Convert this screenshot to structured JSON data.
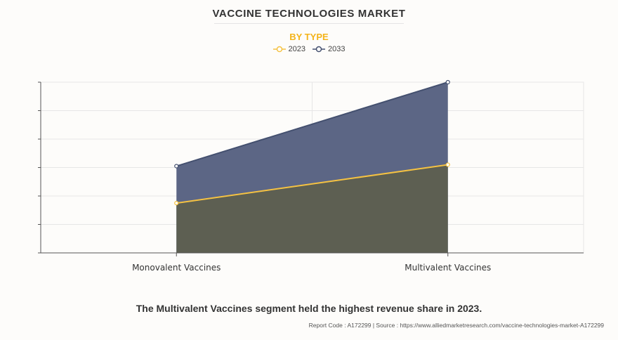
{
  "colors": {
    "series_2023": "#f5c242",
    "series_2033": "#44506f",
    "subtitle": "#f4b41a",
    "fill_2023": "#5d5f52",
    "fill_2033": "#5c6685"
  },
  "chart_data": {
    "type": "area",
    "title": "VACCINE TECHNOLOGIES MARKET",
    "subtitle": "BY TYPE",
    "categories": [
      "Monovalent Vaccines",
      "Multivalent Vaccines"
    ],
    "series": [
      {
        "name": "2023",
        "values": [
          17.5,
          31
        ]
      },
      {
        "name": "2033",
        "values": [
          30.5,
          60
        ]
      }
    ],
    "ylim": [
      0,
      60
    ],
    "y_gridlines": [
      0,
      10,
      20,
      30,
      40,
      50,
      60
    ],
    "xlabel": "",
    "ylabel": "",
    "legend_position": "top-center",
    "grid": true
  },
  "footer": {
    "note": "The Multivalent Vaccines segment held the highest revenue share in 2023.",
    "source": "Report Code : A172299  |  Source : https://www.alliedmarketresearch.com/vaccine-technologies-market-A172299"
  }
}
